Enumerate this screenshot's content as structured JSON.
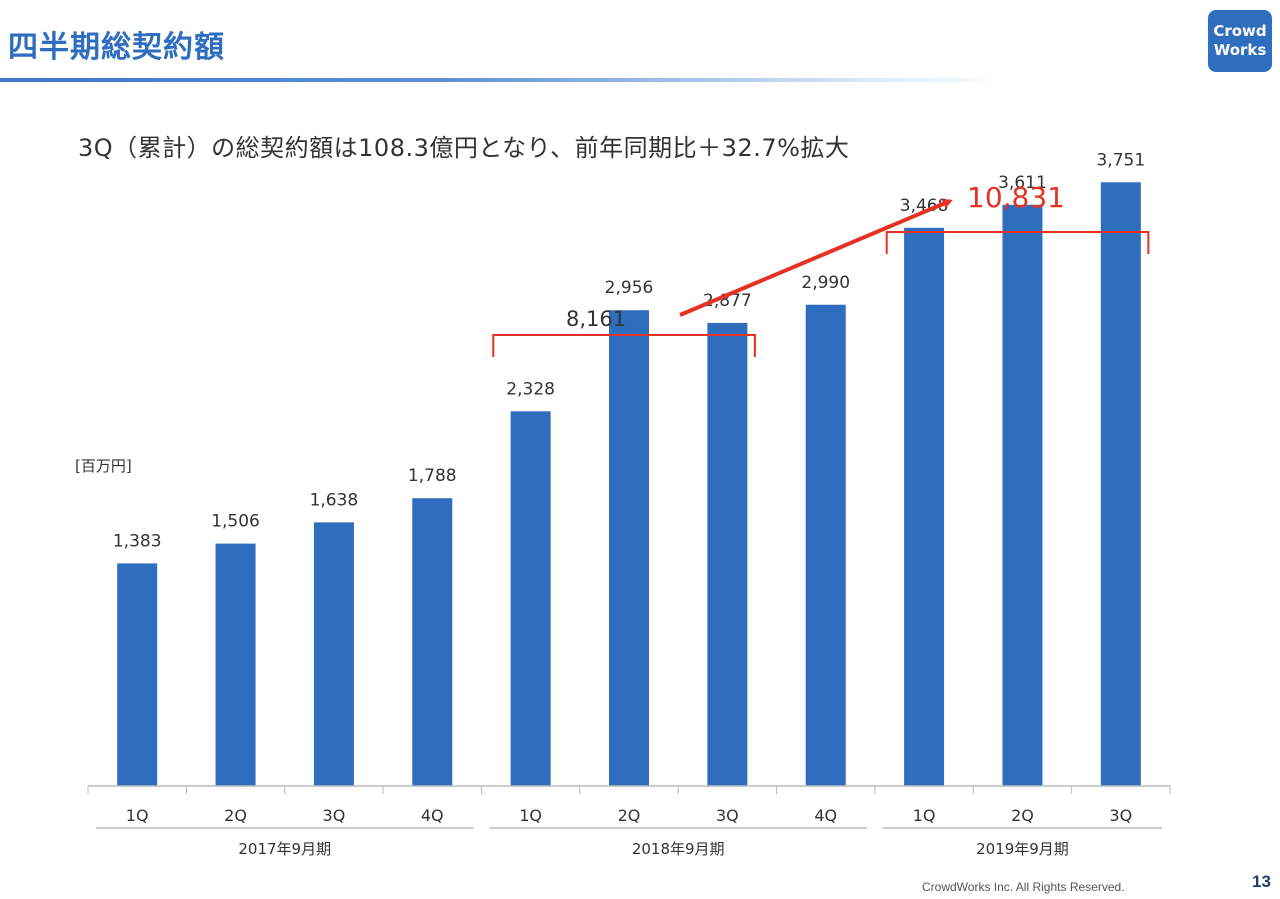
{
  "header": {
    "title": "四半期総契約額",
    "logo_line1": "Crowd",
    "logo_line2": "Works"
  },
  "headline": "3Q（累計）の総契約額は108.3億円となり、前年同期比＋32.7%拡大",
  "colors": {
    "bar": "#2f6dbf",
    "accent_red": "#e53224",
    "title_blue": "#2f6dbf"
  },
  "chart_data": {
    "type": "bar",
    "unit": "[百万円]",
    "categories": [
      "1Q",
      "2Q",
      "3Q",
      "4Q",
      "1Q",
      "2Q",
      "3Q",
      "4Q",
      "1Q",
      "2Q",
      "3Q"
    ],
    "values": [
      1383,
      1506,
      1638,
      1788,
      2328,
      2956,
      2877,
      2990,
      3468,
      3611,
      3751
    ],
    "value_labels": [
      "1,383",
      "1,506",
      "1,638",
      "1,788",
      "2,328",
      "2,956",
      "2,877",
      "2,990",
      "3,468",
      "3,611",
      "3,751"
    ],
    "groups": [
      {
        "label": "2017年9月期",
        "start": 0,
        "end": 3
      },
      {
        "label": "2018年9月期",
        "start": 4,
        "end": 7
      },
      {
        "label": "2019年9月期",
        "start": 8,
        "end": 10
      }
    ],
    "ylim": [
      0,
      4200
    ],
    "annotations": [
      {
        "label": "8,161",
        "start": 4,
        "end": 6,
        "color": "red"
      },
      {
        "label": "10,831",
        "start": 8,
        "end": 10,
        "color": "red",
        "emphasis": true
      }
    ]
  },
  "footer": {
    "copyright": "CrowdWorks Inc. All Rights Reserved.",
    "page_number": "13"
  }
}
